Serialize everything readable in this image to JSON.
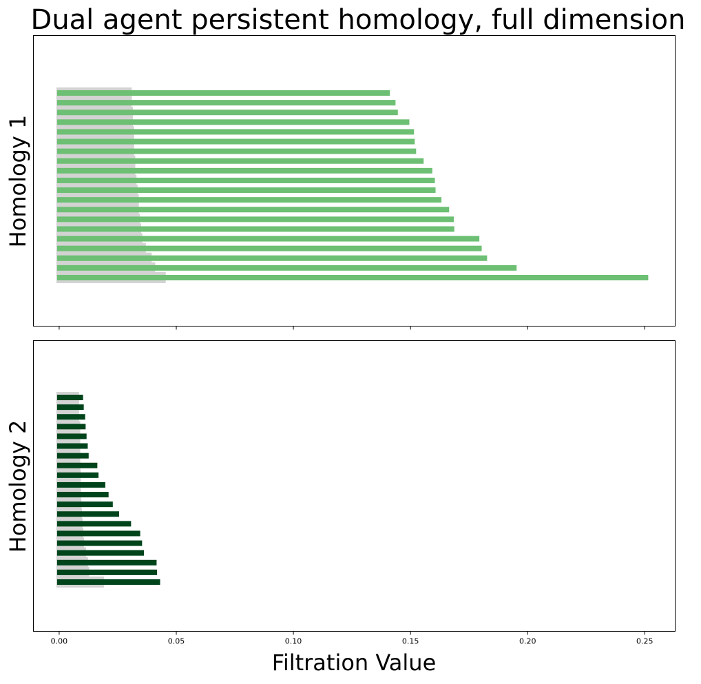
{
  "title": "Dual agent persistent homology, full dimension",
  "xlabel": "Filtration Value",
  "chart_data": [
    {
      "type": "bar",
      "orientation": "horizontal",
      "ylabel": "Homology 1",
      "bar_color": "#6dbf73",
      "shade_color": "#d3d3d3",
      "xlim": [
        -0.011,
        0.263
      ],
      "xticks": [
        0.0,
        0.05,
        0.1,
        0.15,
        0.2,
        0.25
      ],
      "xtick_labels": [],
      "bars": [
        {
          "birth": 0.0,
          "death": 0.1412,
          "shade": 0.031
        },
        {
          "birth": 0.0,
          "death": 0.1436,
          "shade": 0.031
        },
        {
          "birth": 0.0,
          "death": 0.1446,
          "shade": 0.0315
        },
        {
          "birth": 0.0,
          "death": 0.1495,
          "shade": 0.0315
        },
        {
          "birth": 0.0,
          "death": 0.1515,
          "shade": 0.032
        },
        {
          "birth": 0.0,
          "death": 0.1518,
          "shade": 0.032
        },
        {
          "birth": 0.0,
          "death": 0.1524,
          "shade": 0.032
        },
        {
          "birth": 0.0,
          "death": 0.1556,
          "shade": 0.0325
        },
        {
          "birth": 0.0,
          "death": 0.1593,
          "shade": 0.0325
        },
        {
          "birth": 0.0,
          "death": 0.1604,
          "shade": 0.033
        },
        {
          "birth": 0.0,
          "death": 0.1607,
          "shade": 0.0335
        },
        {
          "birth": 0.0,
          "death": 0.1632,
          "shade": 0.034
        },
        {
          "birth": 0.0,
          "death": 0.1665,
          "shade": 0.034
        },
        {
          "birth": 0.0,
          "death": 0.1685,
          "shade": 0.0345
        },
        {
          "birth": 0.0,
          "death": 0.1687,
          "shade": 0.035
        },
        {
          "birth": 0.0,
          "death": 0.1794,
          "shade": 0.0355
        },
        {
          "birth": 0.0,
          "death": 0.1804,
          "shade": 0.037
        },
        {
          "birth": 0.0,
          "death": 0.1827,
          "shade": 0.0395
        },
        {
          "birth": 0.0,
          "death": 0.1953,
          "shade": 0.041
        },
        {
          "birth": 0.0,
          "death": 0.2515,
          "shade": 0.0455
        }
      ]
    },
    {
      "type": "bar",
      "orientation": "horizontal",
      "ylabel": "Homology 2",
      "bar_color": "#00441b",
      "shade_color": "#d3d3d3",
      "xlim": [
        -0.011,
        0.263
      ],
      "xticks": [
        0.0,
        0.05,
        0.1,
        0.15,
        0.2,
        0.25
      ],
      "xtick_labels": [
        "0.00",
        "0.05",
        "0.10",
        "0.15",
        "0.20",
        "0.25"
      ],
      "bars": [
        {
          "birth": 0.0,
          "death": 0.0102,
          "shade": 0.0085
        },
        {
          "birth": 0.0,
          "death": 0.0105,
          "shade": 0.0085
        },
        {
          "birth": 0.0,
          "death": 0.0111,
          "shade": 0.0085
        },
        {
          "birth": 0.0,
          "death": 0.0113,
          "shade": 0.009
        },
        {
          "birth": 0.0,
          "death": 0.0117,
          "shade": 0.009
        },
        {
          "birth": 0.0,
          "death": 0.0122,
          "shade": 0.009
        },
        {
          "birth": 0.0,
          "death": 0.0126,
          "shade": 0.009
        },
        {
          "birth": 0.0,
          "death": 0.0163,
          "shade": 0.009
        },
        {
          "birth": 0.0,
          "death": 0.0168,
          "shade": 0.0092
        },
        {
          "birth": 0.0,
          "death": 0.0197,
          "shade": 0.0092
        },
        {
          "birth": 0.0,
          "death": 0.0211,
          "shade": 0.0093
        },
        {
          "birth": 0.0,
          "death": 0.0229,
          "shade": 0.0095
        },
        {
          "birth": 0.0,
          "death": 0.0256,
          "shade": 0.0097
        },
        {
          "birth": 0.0,
          "death": 0.0307,
          "shade": 0.01
        },
        {
          "birth": 0.0,
          "death": 0.0346,
          "shade": 0.0103
        },
        {
          "birth": 0.0,
          "death": 0.0354,
          "shade": 0.0106
        },
        {
          "birth": 0.0,
          "death": 0.0362,
          "shade": 0.0115
        },
        {
          "birth": 0.0,
          "death": 0.0416,
          "shade": 0.0123
        },
        {
          "birth": 0.0,
          "death": 0.0418,
          "shade": 0.0128
        },
        {
          "birth": 0.0,
          "death": 0.0431,
          "shade": 0.0192
        }
      ]
    }
  ]
}
